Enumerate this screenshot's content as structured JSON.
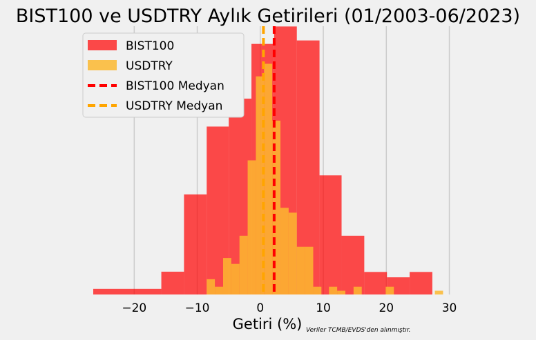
{
  "chart_data": {
    "type": "histogram",
    "title": "BIST100 ve USDTRY Aylık Getirileri (01/2003-06/2023)",
    "xlabel": "Getiri (%)",
    "note": "Veriler TCMB/EVDS'den alınmıştır.",
    "xlim": [
      -26.5,
      29.5
    ],
    "xticks": [
      -20,
      -10,
      0,
      10,
      20,
      30
    ],
    "xtick_labels": [
      "−20",
      "−10",
      "0",
      "10",
      "20",
      "30"
    ],
    "ylim": [
      0,
      1
    ],
    "grid": "x",
    "series": [
      {
        "name": "BIST100",
        "color": "#ff0000",
        "alpha": 0.7,
        "bins": [
          {
            "x0": -26.5,
            "x1": -15.7,
            "h": 0.021
          },
          {
            "x0": -15.7,
            "x1": -12.1,
            "h": 0.085
          },
          {
            "x0": -12.1,
            "x1": -8.5,
            "h": 0.373
          },
          {
            "x0": -8.5,
            "x1": -5.0,
            "h": 0.626
          },
          {
            "x0": -5.0,
            "x1": -1.4,
            "h": 0.73
          },
          {
            "x0": -1.4,
            "x1": 2.2,
            "h": 0.934
          },
          {
            "x0": 2.2,
            "x1": 5.8,
            "h": 0.999
          },
          {
            "x0": 5.8,
            "x1": 9.4,
            "h": 0.947
          },
          {
            "x0": 9.4,
            "x1": 12.9,
            "h": 0.444
          },
          {
            "x0": 12.9,
            "x1": 16.5,
            "h": 0.219
          },
          {
            "x0": 16.5,
            "x1": 20.1,
            "h": 0.084
          },
          {
            "x0": 20.1,
            "x1": 23.7,
            "h": 0.064
          },
          {
            "x0": 23.7,
            "x1": 27.3,
            "h": 0.084
          }
        ]
      },
      {
        "name": "USDTRY",
        "color": "#fbb830",
        "alpha": 0.85,
        "bins": [
          {
            "x0": -8.5,
            "x1": -7.2,
            "h": 0.057
          },
          {
            "x0": -7.2,
            "x1": -5.9,
            "h": 0.029
          },
          {
            "x0": -5.9,
            "x1": -4.6,
            "h": 0.136
          },
          {
            "x0": -4.6,
            "x1": -3.3,
            "h": 0.114
          },
          {
            "x0": -3.3,
            "x1": -2.0,
            "h": 0.219
          },
          {
            "x0": -2.0,
            "x1": -0.7,
            "h": 0.5
          },
          {
            "x0": -0.7,
            "x1": 0.6,
            "h": 0.813
          },
          {
            "x0": 0.6,
            "x1": 1.9,
            "h": 0.86
          },
          {
            "x0": 1.9,
            "x1": 3.2,
            "h": 0.648
          },
          {
            "x0": 3.2,
            "x1": 4.5,
            "h": 0.323
          },
          {
            "x0": 4.5,
            "x1": 5.8,
            "h": 0.305
          },
          {
            "x0": 5.8,
            "x1": 7.1,
            "h": 0.178
          },
          {
            "x0": 7.1,
            "x1": 8.4,
            "h": 0.178
          },
          {
            "x0": 8.4,
            "x1": 9.7,
            "h": 0.029
          },
          {
            "x0": 10.9,
            "x1": 12.2,
            "h": 0.029
          },
          {
            "x0": 12.2,
            "x1": 13.5,
            "h": 0.014
          },
          {
            "x0": 14.8,
            "x1": 16.1,
            "h": 0.029
          },
          {
            "x0": 19.9,
            "x1": 21.2,
            "h": 0.029
          },
          {
            "x0": 27.7,
            "x1": 29.0,
            "h": 0.014
          }
        ]
      }
    ],
    "medians": [
      {
        "name": "BIST100 Medyan",
        "value": 2.2,
        "color": "#ff0000"
      },
      {
        "name": "USDTRY Medyan",
        "value": 0.5,
        "color": "#ffa500"
      }
    ],
    "legend": {
      "placement": "upper-left",
      "entries": [
        "BIST100",
        "USDTRY",
        "BIST100 Medyan",
        "USDTRY Medyan"
      ]
    }
  }
}
